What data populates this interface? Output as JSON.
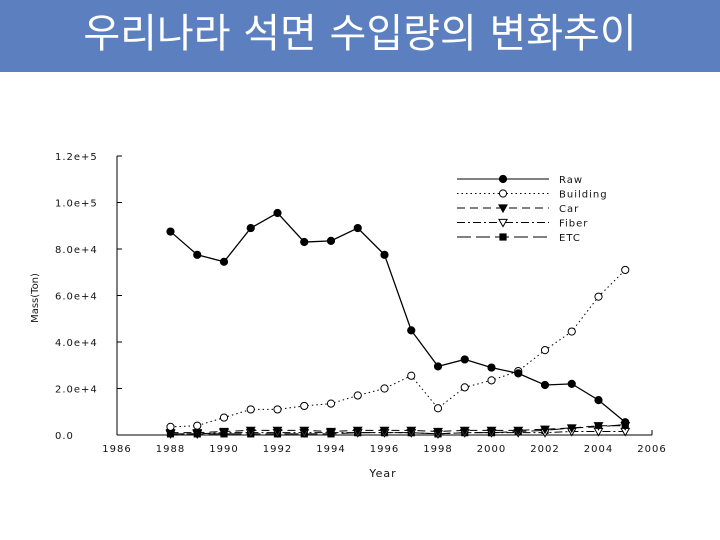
{
  "slide": {
    "title": "우리나라 석면 수입량의 변화추이"
  },
  "chart_data": {
    "type": "line",
    "xlabel": "Year",
    "ylabel": "Mass(Ton)",
    "xlim": [
      1986,
      2006
    ],
    "ylim": [
      0,
      120000
    ],
    "x_ticks": [
      1986,
      1988,
      1990,
      1992,
      1994,
      1996,
      1998,
      2000,
      2002,
      2004,
      2006
    ],
    "y_ticks": [
      "0.0",
      "2.0e+4",
      "4.0e+4",
      "6.0e+4",
      "8.0e+4",
      "1.0e+5",
      "1.2e+5"
    ],
    "legend_position": "top-right",
    "x": [
      1988,
      1989,
      1990,
      1991,
      1992,
      1993,
      1994,
      1995,
      1996,
      1997,
      1998,
      1999,
      2000,
      2001,
      2002,
      2003,
      2004,
      2005
    ],
    "series": [
      {
        "name": "Raw",
        "marker": "filled-circle",
        "dash": "solid",
        "values": [
          87500,
          77500,
          74500,
          89000,
          95500,
          83000,
          83500,
          89000,
          77500,
          45000,
          29500,
          32500,
          29000,
          26500,
          21500,
          22000,
          15000,
          5500
        ]
      },
      {
        "name": "Building",
        "marker": "open-circle",
        "dash": "dotted",
        "values": [
          3500,
          4000,
          7500,
          11000,
          11000,
          12500,
          13500,
          17000,
          20000,
          25500,
          11500,
          20500,
          23500,
          27500,
          36500,
          44500,
          59500,
          71000
        ]
      },
      {
        "name": "Car",
        "marker": "filled-triangle-down",
        "dash": "dashed",
        "values": [
          1000,
          1000,
          1500,
          2000,
          2000,
          2000,
          1500,
          2000,
          2000,
          2000,
          1500,
          2000,
          2000,
          2000,
          2500,
          3000,
          4000,
          4000
        ]
      },
      {
        "name": "Fiber",
        "marker": "open-triangle-down",
        "dash": "dashdot",
        "values": [
          500,
          500,
          1000,
          1000,
          1000,
          1000,
          1000,
          1000,
          1000,
          1000,
          500,
          1000,
          1000,
          1000,
          1000,
          1500,
          1500,
          1500
        ]
      },
      {
        "name": "ETC",
        "marker": "filled-square",
        "dash": "longdash",
        "values": [
          500,
          500,
          500,
          500,
          500,
          500,
          500,
          1000,
          1000,
          1000,
          500,
          1000,
          1000,
          1500,
          2000,
          3000,
          3500,
          4500
        ]
      }
    ]
  }
}
